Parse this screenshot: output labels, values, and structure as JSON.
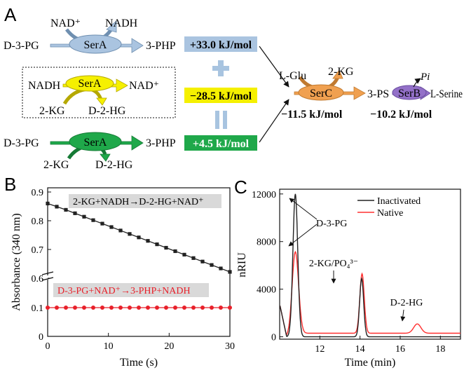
{
  "panels": {
    "a": "A",
    "b": "B",
    "c": "C"
  },
  "scheme": {
    "row1": {
      "left": "D-3-PG",
      "enzyme": "SerA",
      "cof_in": "NAD⁺",
      "cof_out": "NADH",
      "right": "3-PHP",
      "energy": "+33.0 kJ/mol"
    },
    "row2": {
      "left": "NADH",
      "enzyme": "SerA",
      "right": "NAD⁺",
      "bottom_left": "2-KG",
      "bottom_right": "D-2-HG",
      "energy": "−28.5 kJ/mol"
    },
    "row3": {
      "left": "D-3-PG",
      "enzyme": "SerA",
      "right": "3-PHP",
      "bottom_left": "2-KG",
      "bottom_right": "D-2-HG",
      "energy": "+4.5 kJ/mol"
    },
    "plus": "+",
    "equals": "||",
    "downstream": {
      "glu": "L-Glu",
      "kg": "2-KG",
      "serc": "SerC",
      "ps": "3-PS",
      "serb": "SerB",
      "pi": "Pi",
      "serine": "L-Serine",
      "energy_serc": "−11.5 kJ/mol",
      "energy_serb": "−10.2 kJ/mol"
    },
    "colors": {
      "row1": "#aac4e0",
      "row2": "#f5f000",
      "row3": "#1fa84a",
      "serc": "#f0a050",
      "serb": "#9370c8",
      "plus": "#a8c4e0",
      "equals": "#a8c4e0"
    }
  },
  "chart_data": [
    {
      "type": "line",
      "panel": "B",
      "xlabel": "Time (s)",
      "ylabel": "Absorbance (340 nm)",
      "xlim": [
        0,
        30
      ],
      "x_ticks": [
        "0",
        "10",
        "20",
        "30"
      ],
      "y_ticks_lower": [
        "0",
        "0.1"
      ],
      "y_ticks_upper": [
        "0.6",
        "0.7",
        "0.8",
        "0.9"
      ],
      "axis_break": true,
      "series": [
        {
          "name": "2-KG+NADH→D-2-HG+NAD⁺",
          "color": "#222222",
          "marker": "square",
          "x": [
            0,
            1.5,
            3,
            4.5,
            6,
            7.5,
            9,
            10.5,
            12,
            13.5,
            15,
            16.5,
            18,
            19.5,
            21,
            22.5,
            24,
            25.5,
            27,
            28.5,
            30
          ],
          "y": [
            0.86,
            0.849,
            0.838,
            0.826,
            0.814,
            0.802,
            0.79,
            0.778,
            0.766,
            0.754,
            0.742,
            0.73,
            0.718,
            0.706,
            0.694,
            0.682,
            0.67,
            0.658,
            0.646,
            0.634,
            0.622
          ]
        },
        {
          "name": "D-3-PG+NAD⁺→3-PHP+NADH",
          "color": "#e8202a",
          "marker": "circle",
          "x": [
            0,
            1.5,
            3,
            4.5,
            6,
            7.5,
            9,
            10.5,
            12,
            13.5,
            15,
            16.5,
            18,
            19.5,
            21,
            22.5,
            24,
            25.5,
            27,
            28.5,
            30
          ],
          "y": [
            0.1,
            0.1,
            0.1,
            0.1,
            0.1,
            0.1,
            0.1,
            0.1,
            0.1,
            0.1,
            0.1,
            0.1,
            0.1,
            0.1,
            0.1,
            0.1,
            0.1,
            0.1,
            0.1,
            0.1,
            0.1
          ]
        }
      ]
    },
    {
      "type": "line",
      "panel": "C",
      "xlabel": "Time (min)",
      "ylabel": "nRIU",
      "xlim": [
        10,
        19
      ],
      "ylim": [
        -200,
        12400
      ],
      "x_ticks": [
        "12",
        "14",
        "16",
        "18"
      ],
      "y_ticks": [
        "0",
        "4000",
        "8000",
        "12000"
      ],
      "legend_position": "top-right",
      "annotations": [
        "D-3-PG",
        "2-KG/PO₄³⁻",
        "D-2-HG"
      ],
      "series": [
        {
          "name": "Inactivated",
          "color": "#222222"
        },
        {
          "name": "Native",
          "color": "#ff3030"
        }
      ]
    }
  ]
}
